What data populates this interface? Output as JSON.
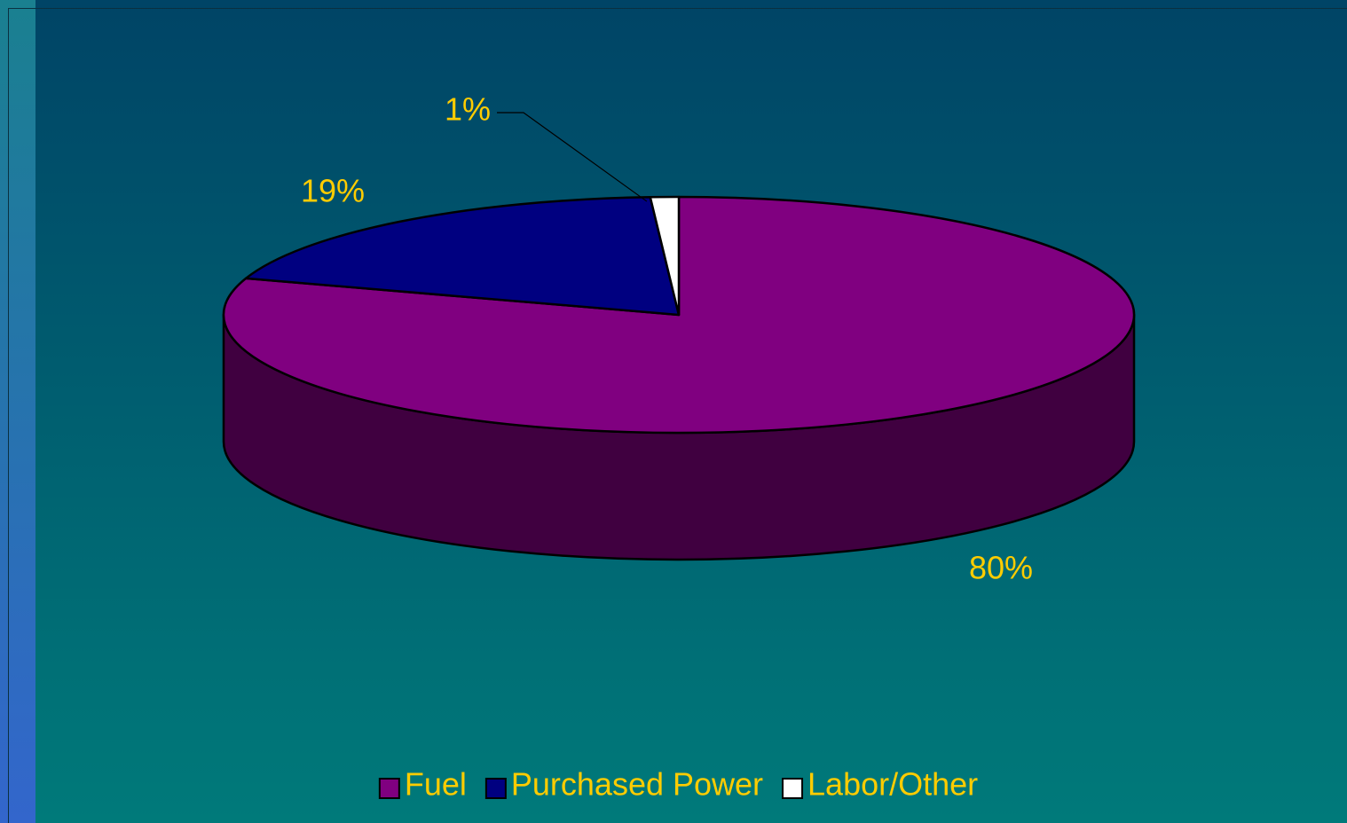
{
  "chart_data": {
    "type": "pie",
    "categories": [
      "Fuel",
      "Purchased Power",
      "Labor/Other"
    ],
    "values": [
      80,
      19,
      1
    ],
    "value_labels": [
      "80%",
      "19%",
      "1%"
    ],
    "colors": [
      "#800080",
      "#000080",
      "#ffffff"
    ],
    "legend": "bottom"
  }
}
